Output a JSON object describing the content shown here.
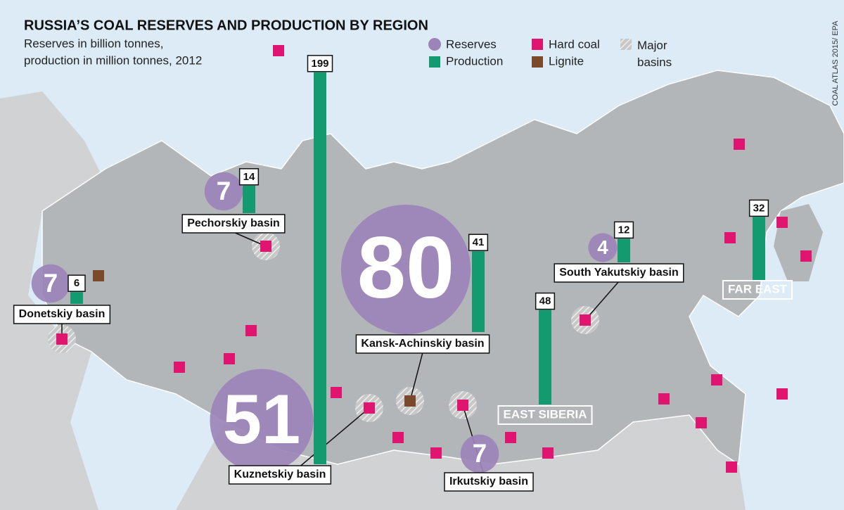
{
  "title": "RUSSIA’S COAL RESERVES AND PRODUCTION BY REGION",
  "subtitle": [
    "Reserves in billion tonnes,",
    "production in million tonnes, 2012"
  ],
  "legend": {
    "reserves": "Reserves",
    "production": "Production",
    "hard_coal": "Hard coal",
    "lignite": "Lignite",
    "major_basins": "Major basins"
  },
  "credit": "COAL ATLAS 2015/ EPA",
  "basins": [
    {
      "label": "Donetskiy basin",
      "reserves": 7,
      "production": 6
    },
    {
      "label": "Pechorskiy basin",
      "reserves": 7,
      "production": 14
    },
    {
      "label": "Kansk-Achinskiy basin",
      "reserves": 80,
      "production": 41
    },
    {
      "label": "Kuznetskiy basin",
      "reserves": 51,
      "production": 199
    },
    {
      "label": "Irkutskiy basin",
      "reserves": 7
    },
    {
      "label": "South Yakutskiy basin",
      "reserves": 4,
      "production": 12
    }
  ],
  "regions": [
    {
      "label": "EAST SIBERIA",
      "production": 48
    },
    {
      "label": "FAR EAST",
      "production": 32
    }
  ]
}
